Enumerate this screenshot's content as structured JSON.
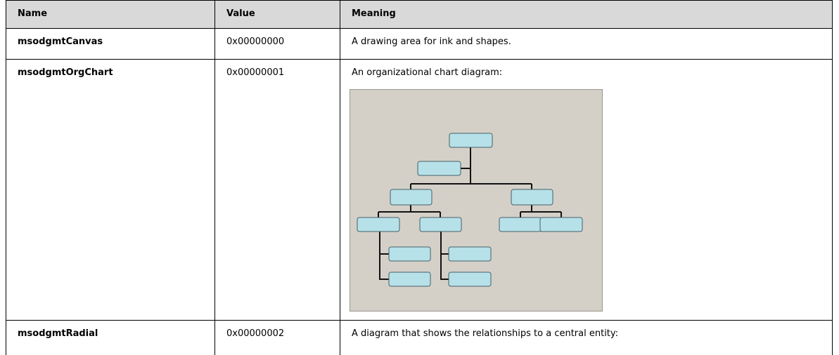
{
  "table": {
    "columns": [
      "Name",
      "Value",
      "Meaning"
    ],
    "rows": [
      [
        "msodgmtCanvas",
        "0x00000000",
        "A drawing area for ink and shapes."
      ],
      [
        "msodgmtOrgChart",
        "0x00000001",
        "An organizational chart diagram:"
      ],
      [
        "msodgmtRadial",
        "0x00000002",
        "A diagram that shows the relationships to a central entity:"
      ]
    ]
  }
}
